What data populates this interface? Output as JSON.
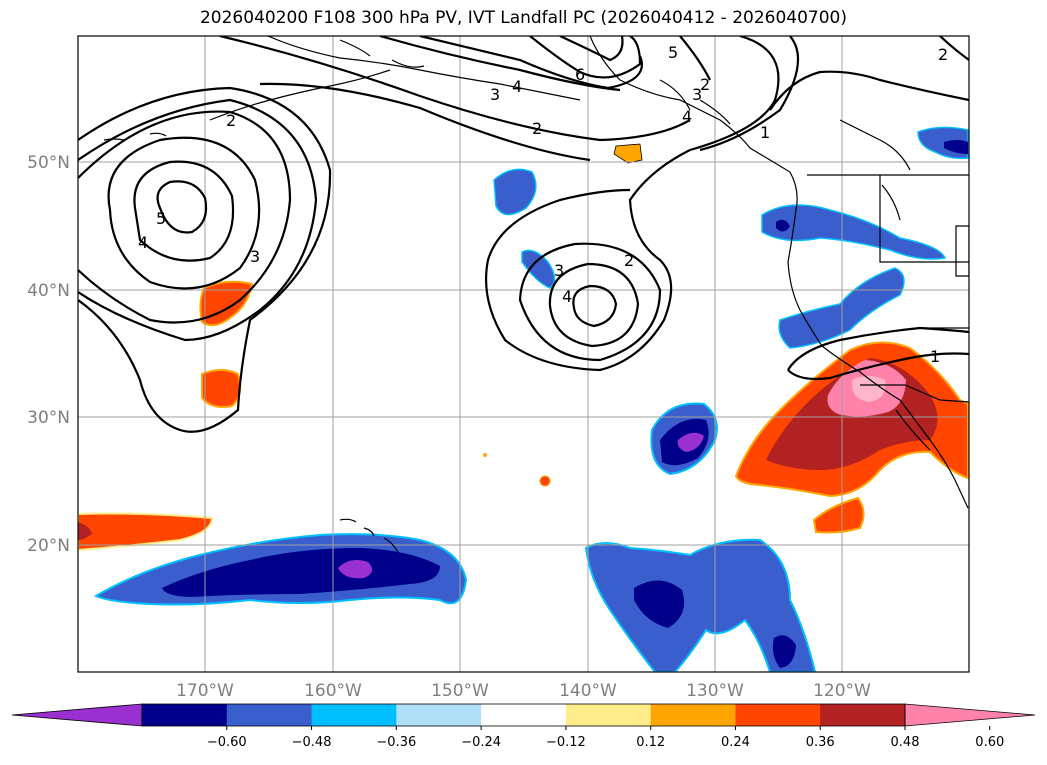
{
  "title": "2026040200 F108 300 hPa PV, IVT Landfall PC (2026040412 - 2026040700)",
  "latitude_labels": [
    "50°N",
    "40°N",
    "30°N",
    "20°N"
  ],
  "longitude_labels": [
    "170°W",
    "160°W",
    "150°W",
    "140°W",
    "130°W",
    "120°W"
  ],
  "contour_labels": [
    "2",
    "5",
    "4",
    "3",
    "3",
    "4",
    "2",
    "6",
    "5",
    "4",
    "3",
    "2",
    "1",
    "3",
    "4",
    "2",
    "1",
    "2"
  ],
  "colorbar": {
    "ticks": [
      "−0.60",
      "−0.48",
      "−0.36",
      "−0.24",
      "−0.12",
      "0.12",
      "0.24",
      "0.36",
      "0.48",
      "0.60"
    ],
    "colors": [
      "#9b30d0",
      "#00008b",
      "#3a5fcd",
      "#00bfff",
      "#b0e0f8",
      "#ffffff",
      "#ffec8b",
      "#ffa500",
      "#ff4500",
      "#b22222",
      "#ff82ab"
    ]
  }
}
